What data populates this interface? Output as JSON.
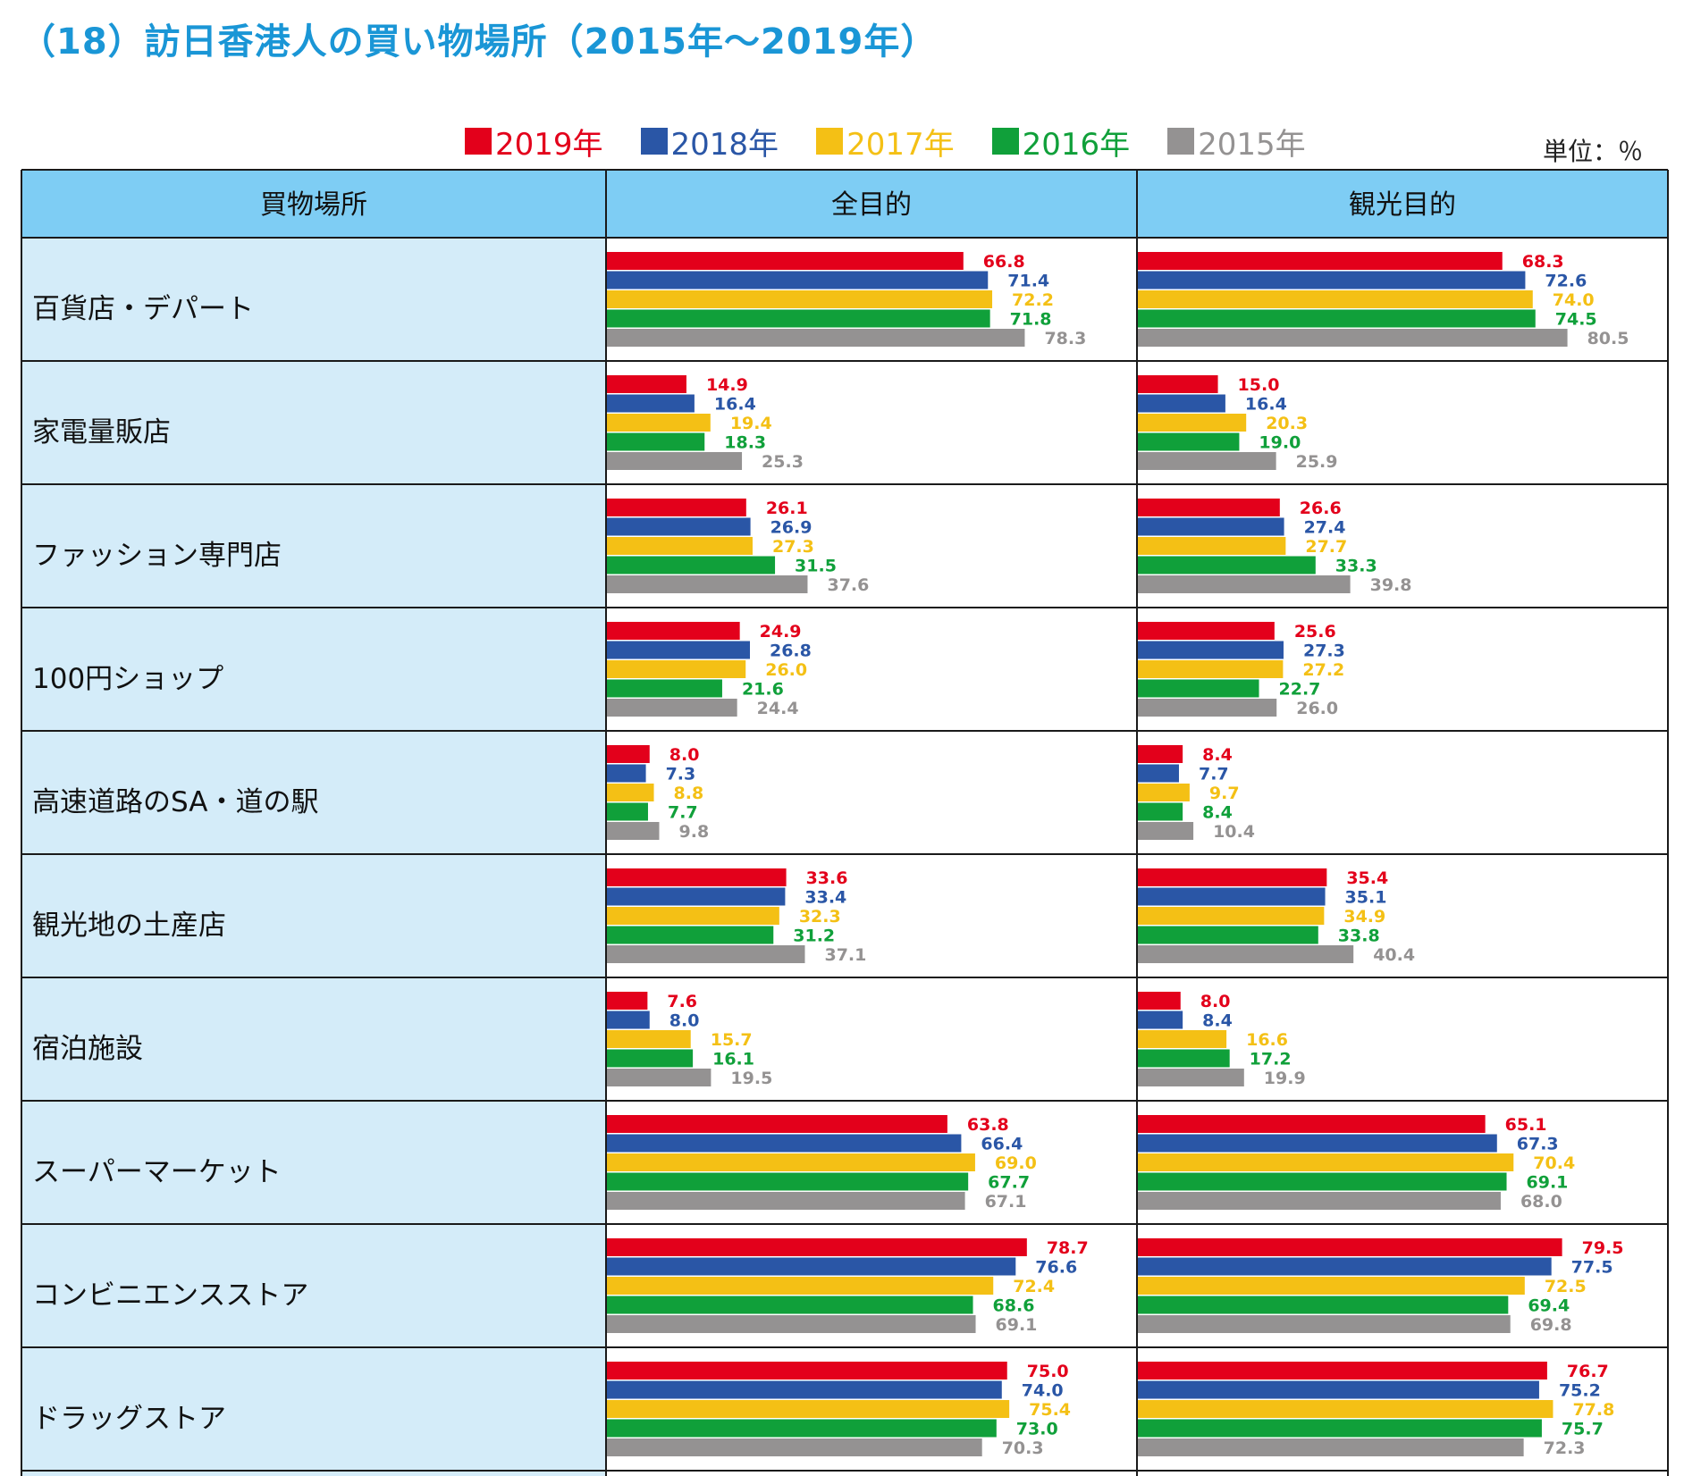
{
  "title": "（18）訪日香港人の買い物場所（2015年～2019年）",
  "unit": "単位：％",
  "colors": {
    "2019年": "#e3001b",
    "2018年": "#2a56a6",
    "2017年": "#f4c015",
    "2016年": "#10a03a",
    "2015年": "#949292",
    "header_bg": "#7ecdf4",
    "category_bg": "#d4ecf9"
  },
  "chart_data": {
    "type": "bar",
    "orientation": "horizontal",
    "legend": [
      "2019年",
      "2018年",
      "2017年",
      "2016年",
      "2015年"
    ],
    "legend_position": "top",
    "header": {
      "category": "買物場所",
      "panels": [
        "全目的",
        "観光目的"
      ]
    },
    "categories": [
      "百貨店・デパート",
      "家電量販店",
      "ファッション専門店",
      "100円ショップ",
      "高速道路のSA・道の駅",
      "観光地の土産店",
      "宿泊施設",
      "スーパーマーケット",
      "コンビニエンスストア",
      "ドラッグストア"
    ],
    "panels": [
      {
        "name": "全目的",
        "series": [
          {
            "name": "2019年",
            "values": [
              66.8,
              14.9,
              26.1,
              24.9,
              8.0,
              33.6,
              7.6,
              63.8,
              78.7,
              75.0
            ]
          },
          {
            "name": "2018年",
            "values": [
              71.4,
              16.4,
              26.9,
              26.8,
              7.3,
              33.4,
              8.0,
              66.4,
              76.6,
              74.0
            ]
          },
          {
            "name": "2017年",
            "values": [
              72.2,
              19.4,
              27.3,
              26.0,
              8.8,
              32.3,
              15.7,
              69.0,
              72.4,
              75.4
            ]
          },
          {
            "name": "2016年",
            "values": [
              71.8,
              18.3,
              31.5,
              21.6,
              7.7,
              31.2,
              16.1,
              67.7,
              68.6,
              73.0
            ]
          },
          {
            "name": "2015年",
            "values": [
              78.3,
              25.3,
              37.6,
              24.4,
              9.8,
              37.1,
              19.5,
              67.1,
              69.1,
              70.3
            ]
          }
        ]
      },
      {
        "name": "観光目的",
        "series": [
          {
            "name": "2019年",
            "values": [
              68.3,
              15.0,
              26.6,
              25.6,
              8.4,
              35.4,
              8.0,
              65.1,
              79.5,
              76.7
            ]
          },
          {
            "name": "2018年",
            "values": [
              72.6,
              16.4,
              27.4,
              27.3,
              7.7,
              35.1,
              8.4,
              67.3,
              77.5,
              75.2
            ]
          },
          {
            "name": "2017年",
            "values": [
              74.0,
              20.3,
              27.7,
              27.2,
              9.7,
              34.9,
              16.6,
              70.4,
              72.5,
              77.8
            ]
          },
          {
            "name": "2016年",
            "values": [
              74.5,
              19.0,
              33.3,
              22.7,
              8.4,
              33.8,
              17.2,
              69.1,
              69.4,
              75.7
            ]
          },
          {
            "name": "2015年",
            "values": [
              80.5,
              25.9,
              39.8,
              26.0,
              10.4,
              40.4,
              19.9,
              68.0,
              69.8,
              72.3
            ]
          }
        ]
      }
    ],
    "xlim": [
      0,
      100
    ],
    "grid": false
  }
}
